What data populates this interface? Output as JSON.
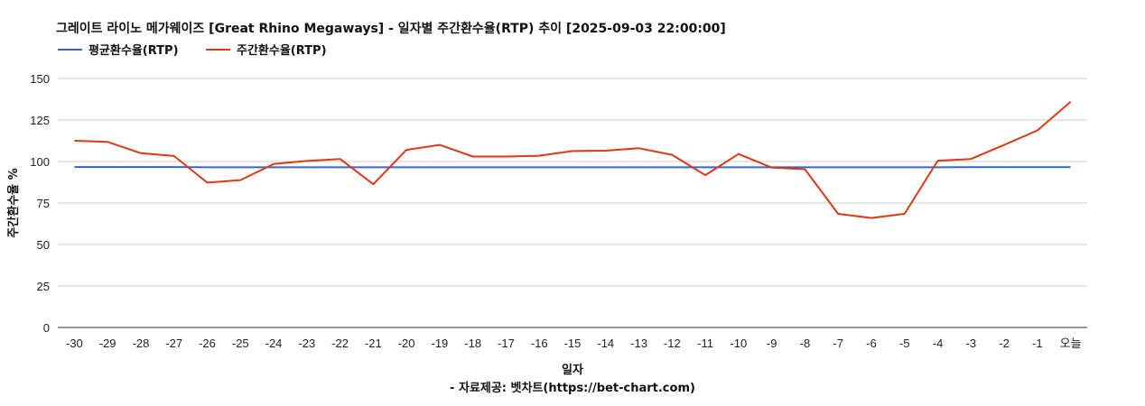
{
  "chart_data": {
    "type": "line",
    "title": "그레이트 라이노 메가웨이즈 [Great Rhino Megaways] - 일자별 주간환수율(RTP) 추이 [2025-09-03 22:00:00]",
    "xlabel": "일자",
    "ylabel": "주간환수율 %",
    "source": "- 자료제공: 벳차트(https://bet-chart.com)",
    "ylim": [
      0,
      150
    ],
    "yticks": [
      "0",
      "25",
      "50",
      "75",
      "100",
      "125",
      "150"
    ],
    "grid": true,
    "legend_position": "top-left",
    "categories": [
      "-30",
      "-29",
      "-28",
      "-27",
      "-26",
      "-25",
      "-24",
      "-23",
      "-22",
      "-21",
      "-20",
      "-19",
      "-18",
      "-17",
      "-16",
      "-15",
      "-14",
      "-13",
      "-12",
      "-11",
      "-10",
      "-9",
      "-8",
      "-7",
      "-6",
      "-5",
      "-4",
      "-3",
      "-2",
      "-1",
      "오늘"
    ],
    "series": [
      {
        "name": "평균환수율(RTP)",
        "color": "#3366cc",
        "values": [
          96.7,
          96.7,
          96.7,
          96.7,
          96.5,
          96.5,
          96.5,
          96.5,
          96.5,
          96.5,
          96.5,
          96.5,
          96.5,
          96.5,
          96.5,
          96.5,
          96.5,
          96.5,
          96.5,
          96.5,
          96.5,
          96.5,
          96.5,
          96.5,
          96.5,
          96.5,
          96.5,
          96.6,
          96.6,
          96.6,
          96.6
        ]
      },
      {
        "name": "주간환수율(RTP)",
        "color": "#dc3912",
        "values": [
          112.5,
          111.8,
          105,
          103.3,
          87.3,
          88.8,
          98.5,
          100.3,
          101.5,
          86.3,
          107,
          110,
          103,
          103,
          103.5,
          106.3,
          106.5,
          108,
          104,
          91.8,
          104.5,
          96.3,
          95.3,
          68.5,
          66,
          68.5,
          100.5,
          101.5,
          110,
          118.7,
          136
        ]
      }
    ]
  }
}
